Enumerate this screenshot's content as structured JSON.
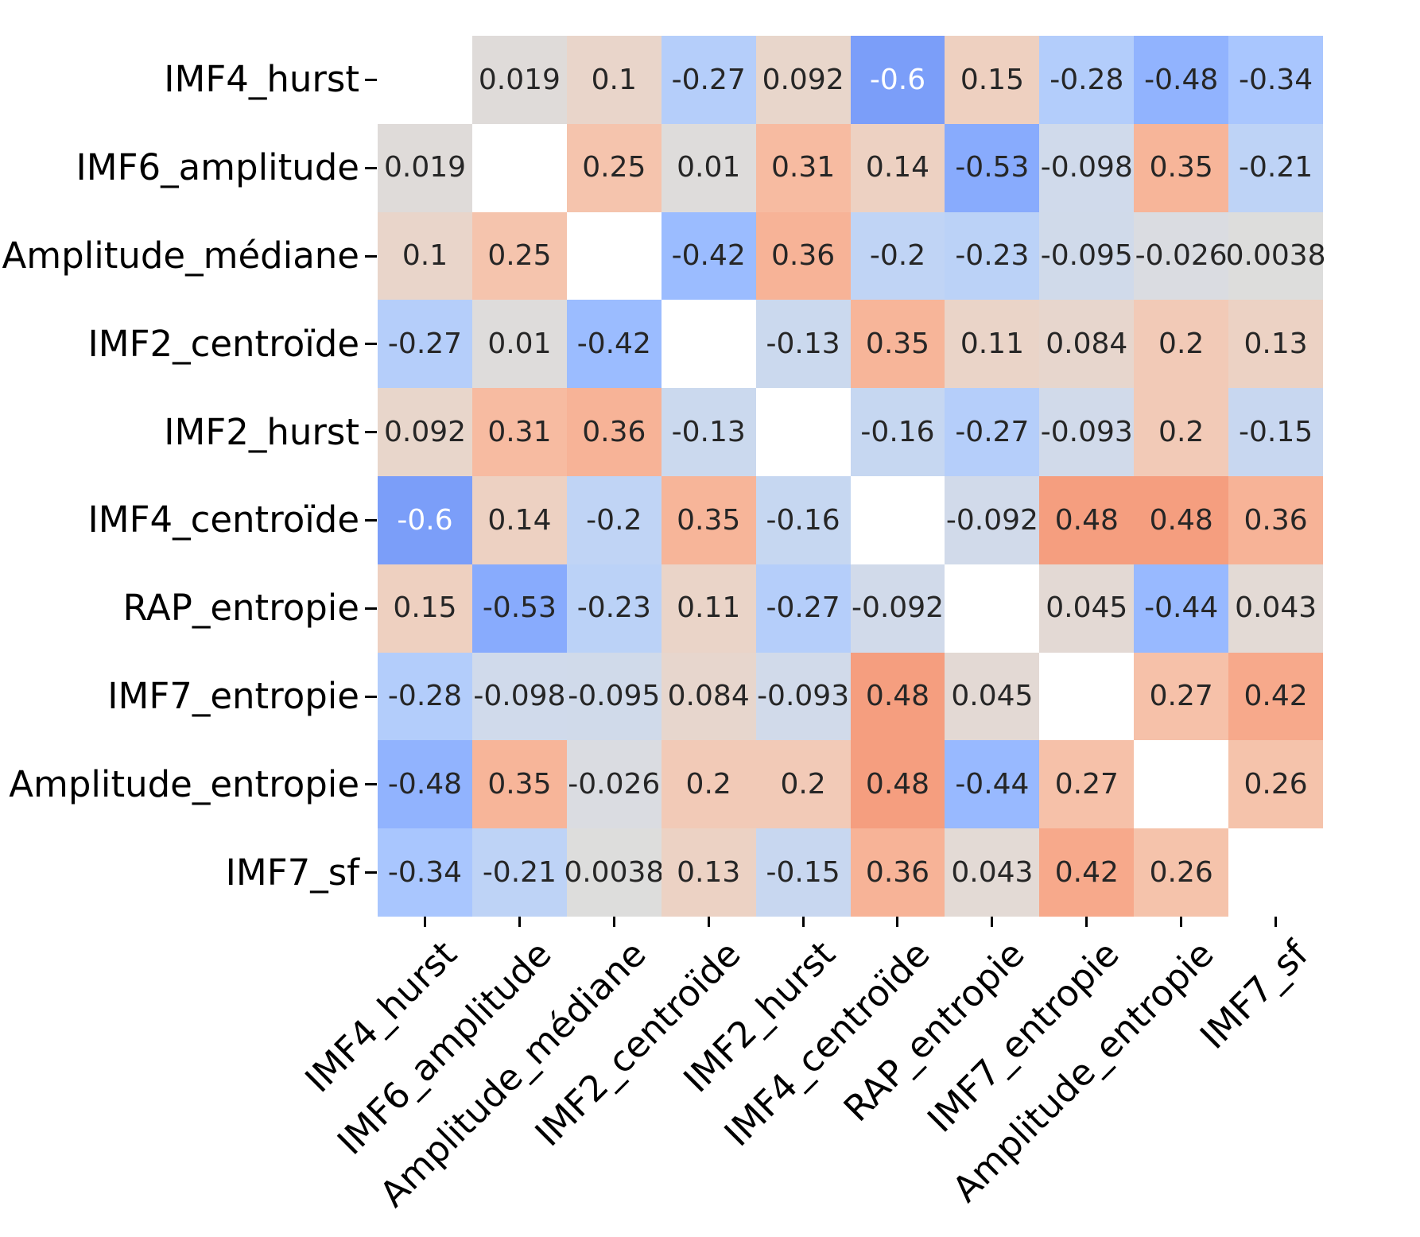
{
  "chart_data": {
    "type": "heatmap",
    "title": "",
    "categories": [
      "IMF4_hurst",
      "IMF6_amplitude",
      "Amplitude_médiane",
      "IMF2_centroïde",
      "IMF2_hurst",
      "IMF4_centroïde",
      "RAP_entropie",
      "IMF7_entropie",
      "Amplitude_entropie",
      "IMF7_sf"
    ],
    "matrix": [
      [
        null,
        0.019,
        0.1,
        -0.27,
        0.092,
        -0.6,
        0.15,
        -0.28,
        -0.48,
        -0.34
      ],
      [
        0.019,
        null,
        0.25,
        0.01,
        0.31,
        0.14,
        -0.53,
        -0.098,
        0.35,
        -0.21
      ],
      [
        0.1,
        0.25,
        null,
        -0.42,
        0.36,
        -0.2,
        -0.23,
        -0.095,
        -0.026,
        0.0038
      ],
      [
        -0.27,
        0.01,
        -0.42,
        null,
        -0.13,
        0.35,
        0.11,
        0.084,
        0.2,
        0.13
      ],
      [
        0.092,
        0.31,
        0.36,
        -0.13,
        null,
        -0.16,
        -0.27,
        -0.093,
        0.2,
        -0.15
      ],
      [
        -0.6,
        0.14,
        -0.2,
        0.35,
        -0.16,
        null,
        -0.092,
        0.48,
        0.48,
        0.36
      ],
      [
        0.15,
        -0.53,
        -0.23,
        0.11,
        -0.27,
        -0.092,
        null,
        0.045,
        -0.44,
        0.043
      ],
      [
        -0.28,
        -0.098,
        -0.095,
        0.084,
        -0.093,
        0.48,
        0.045,
        null,
        0.27,
        0.42
      ],
      [
        -0.48,
        0.35,
        -0.026,
        0.2,
        0.2,
        0.48,
        -0.44,
        0.27,
        null,
        0.26
      ],
      [
        -0.34,
        -0.21,
        0.0038,
        0.13,
        -0.15,
        0.36,
        0.043,
        0.42,
        0.26,
        null
      ]
    ],
    "colormap": "coolwarm",
    "vmin": -1,
    "vmax": 1,
    "diagonal_masked": true,
    "annotation_significant_digits": 2,
    "x_tick_rotation_deg": 45,
    "legend": "none",
    "grid": "off",
    "colors": {
      "background": "#ffffff",
      "masked_cell": "#ffffff",
      "annotation_dark": "#262626",
      "annotation_light": "#ffffff",
      "tick": "#000000",
      "label": "#000000"
    }
  }
}
